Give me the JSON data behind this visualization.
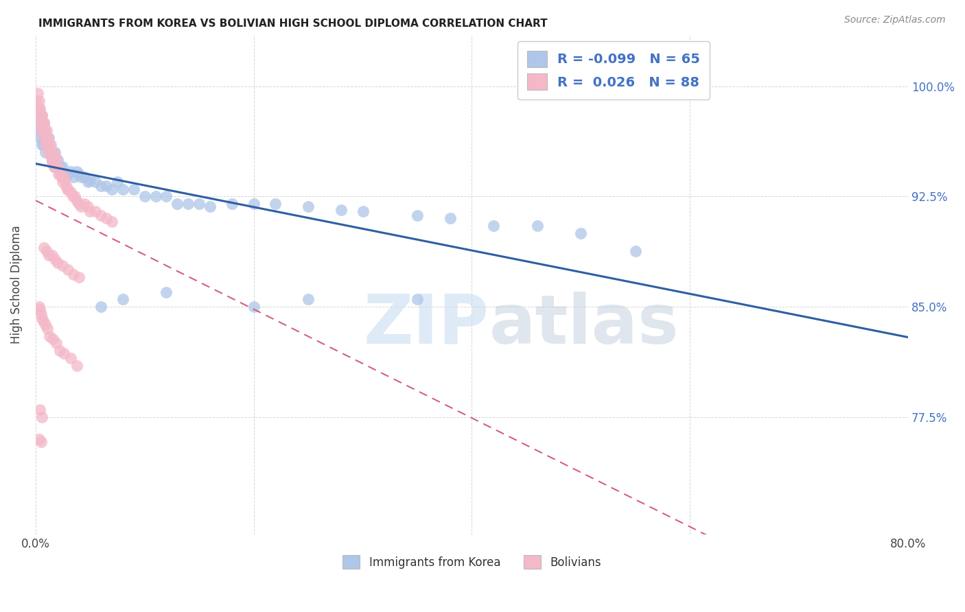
{
  "title": "IMMIGRANTS FROM KOREA VS BOLIVIAN HIGH SCHOOL DIPLOMA CORRELATION CHART",
  "source": "Source: ZipAtlas.com",
  "ylabel": "High School Diploma",
  "ytick_values": [
    1.0,
    0.925,
    0.85,
    0.775
  ],
  "ytick_labels": [
    "100.0%",
    "92.5%",
    "85.0%",
    "77.5%"
  ],
  "xlim": [
    0.0,
    0.8
  ],
  "ylim": [
    0.695,
    1.035
  ],
  "korea_R": "-0.099",
  "korea_N": "65",
  "bolivia_R": "0.026",
  "bolivia_N": "88",
  "korea_color": "#aec6e8",
  "bolivia_color": "#f4b8c8",
  "korea_line_color": "#2e5fa3",
  "bolivia_line_color": "#d4607a",
  "watermark_zip": "ZIP",
  "watermark_atlas": "atlas",
  "background_color": "#ffffff",
  "grid_color": "#cccccc",
  "right_tick_color": "#4472c4",
  "korea_scatter_x": [
    0.002,
    0.003,
    0.004,
    0.005,
    0.006,
    0.006,
    0.007,
    0.007,
    0.008,
    0.008,
    0.009,
    0.01,
    0.011,
    0.012,
    0.013,
    0.014,
    0.015,
    0.016,
    0.017,
    0.018,
    0.02,
    0.022,
    0.025,
    0.028,
    0.03,
    0.032,
    0.035,
    0.038,
    0.04,
    0.042,
    0.045,
    0.048,
    0.05,
    0.055,
    0.06,
    0.065,
    0.07,
    0.075,
    0.08,
    0.09,
    0.1,
    0.11,
    0.12,
    0.13,
    0.14,
    0.15,
    0.16,
    0.18,
    0.2,
    0.22,
    0.25,
    0.28,
    0.3,
    0.35,
    0.38,
    0.42,
    0.46,
    0.5,
    0.2,
    0.25,
    0.12,
    0.08,
    0.06,
    0.35,
    0.55
  ],
  "korea_scatter_y": [
    0.975,
    0.97,
    0.965,
    0.972,
    0.96,
    0.98,
    0.97,
    0.965,
    0.96,
    0.975,
    0.955,
    0.96,
    0.96,
    0.965,
    0.96,
    0.955,
    0.95,
    0.955,
    0.945,
    0.955,
    0.95,
    0.945,
    0.945,
    0.94,
    0.94,
    0.942,
    0.938,
    0.942,
    0.94,
    0.938,
    0.938,
    0.935,
    0.936,
    0.935,
    0.932,
    0.932,
    0.93,
    0.935,
    0.93,
    0.93,
    0.925,
    0.925,
    0.925,
    0.92,
    0.92,
    0.92,
    0.918,
    0.92,
    0.92,
    0.92,
    0.918,
    0.916,
    0.915,
    0.912,
    0.91,
    0.905,
    0.905,
    0.9,
    0.85,
    0.855,
    0.86,
    0.855,
    0.85,
    0.855,
    0.888
  ],
  "bolivia_scatter_x": [
    0.001,
    0.002,
    0.002,
    0.003,
    0.003,
    0.004,
    0.004,
    0.005,
    0.005,
    0.006,
    0.006,
    0.007,
    0.007,
    0.008,
    0.008,
    0.009,
    0.009,
    0.01,
    0.01,
    0.011,
    0.011,
    0.012,
    0.012,
    0.013,
    0.013,
    0.014,
    0.014,
    0.015,
    0.015,
    0.016,
    0.016,
    0.017,
    0.017,
    0.018,
    0.018,
    0.019,
    0.02,
    0.021,
    0.022,
    0.023,
    0.024,
    0.025,
    0.026,
    0.027,
    0.028,
    0.029,
    0.03,
    0.032,
    0.034,
    0.036,
    0.038,
    0.04,
    0.042,
    0.045,
    0.048,
    0.05,
    0.055,
    0.06,
    0.065,
    0.07,
    0.008,
    0.01,
    0.012,
    0.015,
    0.018,
    0.02,
    0.025,
    0.03,
    0.035,
    0.04,
    0.003,
    0.004,
    0.005,
    0.006,
    0.007,
    0.009,
    0.011,
    0.013,
    0.016,
    0.019,
    0.022,
    0.026,
    0.032,
    0.038,
    0.004,
    0.006,
    0.003,
    0.005
  ],
  "bolivia_scatter_y": [
    0.99,
    0.985,
    0.995,
    0.985,
    0.99,
    0.975,
    0.985,
    0.98,
    0.97,
    0.975,
    0.98,
    0.97,
    0.975,
    0.965,
    0.975,
    0.97,
    0.96,
    0.965,
    0.97,
    0.96,
    0.965,
    0.955,
    0.96,
    0.958,
    0.955,
    0.96,
    0.952,
    0.955,
    0.948,
    0.955,
    0.95,
    0.948,
    0.945,
    0.952,
    0.945,
    0.95,
    0.945,
    0.94,
    0.942,
    0.94,
    0.938,
    0.935,
    0.938,
    0.935,
    0.932,
    0.93,
    0.93,
    0.928,
    0.925,
    0.925,
    0.922,
    0.92,
    0.918,
    0.92,
    0.918,
    0.915,
    0.915,
    0.912,
    0.91,
    0.908,
    0.89,
    0.888,
    0.885,
    0.885,
    0.882,
    0.88,
    0.878,
    0.875,
    0.872,
    0.87,
    0.85,
    0.848,
    0.845,
    0.842,
    0.84,
    0.838,
    0.835,
    0.83,
    0.828,
    0.825,
    0.82,
    0.818,
    0.815,
    0.81,
    0.78,
    0.775,
    0.76,
    0.758
  ]
}
